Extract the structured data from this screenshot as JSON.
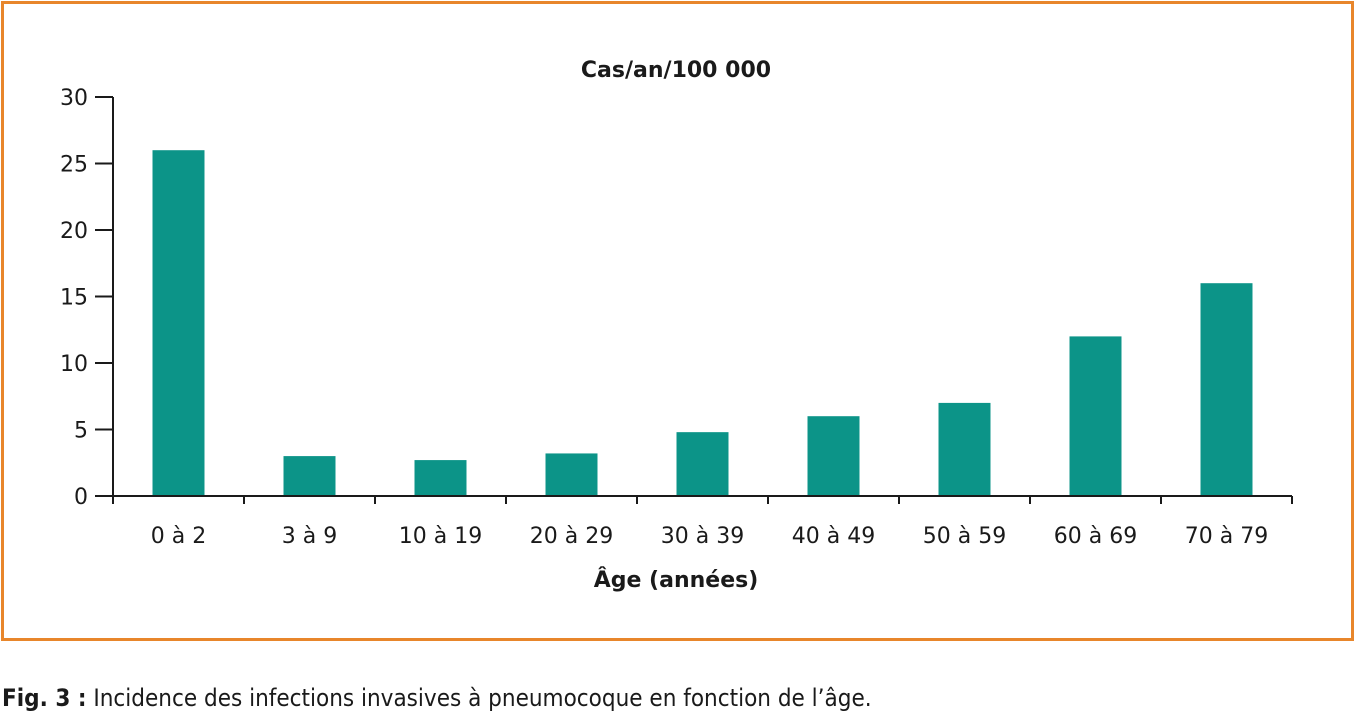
{
  "colors": {
    "frame": "#e8862b",
    "bar": "#0c9488",
    "axis": "#1a1a1a"
  },
  "chart_data": {
    "type": "bar",
    "title": "",
    "ylabel": "Cas/an/100 000",
    "xlabel": "Âge (années)",
    "categories": [
      "0 à 2",
      "3 à 9",
      "10 à 19",
      "20 à 29",
      "30 à 39",
      "40 à 49",
      "50 à 59",
      "60 à 69",
      "70 à 79"
    ],
    "values": [
      26,
      3,
      2.7,
      3.2,
      4.8,
      6,
      7,
      12,
      16
    ],
    "ylim": [
      0,
      30
    ],
    "yticks": [
      "0",
      "5",
      "10",
      "15",
      "20",
      "25",
      "30"
    ],
    "grid": false,
    "legend": "none"
  },
  "caption": {
    "label": "Fig. 3 :",
    "text": " Incidence des infections invasives à pneumocoque en fonction de l’âge."
  }
}
